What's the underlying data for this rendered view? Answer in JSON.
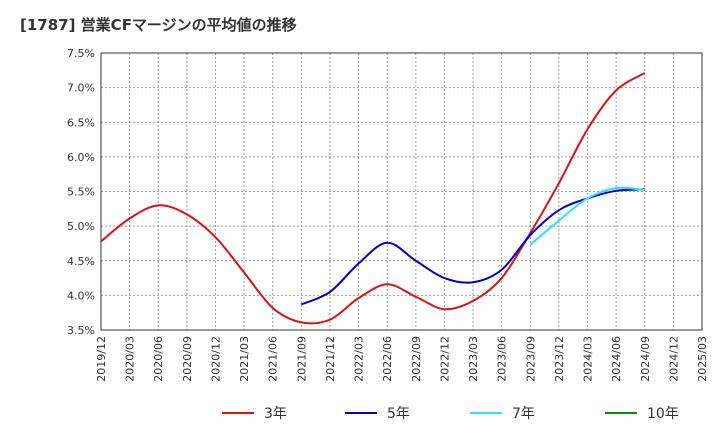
{
  "chart_data": {
    "type": "line",
    "title": "[1787]  営業CFマージンの平均値の推移",
    "xlabel": "",
    "ylabel": "",
    "categories": [
      "2019/12",
      "2020/03",
      "2020/06",
      "2020/09",
      "2020/12",
      "2021/03",
      "2021/06",
      "2021/09",
      "2021/12",
      "2022/03",
      "2022/06",
      "2022/09",
      "2022/12",
      "2023/03",
      "2023/06",
      "2023/09",
      "2023/12",
      "2024/03",
      "2024/06",
      "2024/09",
      "2024/12",
      "2025/03"
    ],
    "y_ticks": [
      "7.5%",
      "7.0%",
      "6.5%",
      "6.0%",
      "5.5%",
      "5.0%",
      "4.5%",
      "4.0%",
      "3.5%"
    ],
    "ylim": [
      3.5,
      7.5
    ],
    "grid": true,
    "legend_position": "bottom",
    "series": [
      {
        "name": "3年",
        "color": "#dd1111",
        "values": [
          4.78,
          5.11,
          5.3,
          5.17,
          4.84,
          4.33,
          3.82,
          3.61,
          3.65,
          3.96,
          4.16,
          3.98,
          3.8,
          3.92,
          4.25,
          4.9,
          5.62,
          6.4,
          6.96,
          7.21,
          null,
          null
        ]
      },
      {
        "name": "5年",
        "color": "#0000cc",
        "values": [
          null,
          null,
          null,
          null,
          null,
          null,
          null,
          3.87,
          4.05,
          4.46,
          4.76,
          4.5,
          4.25,
          4.19,
          4.37,
          4.87,
          5.23,
          5.4,
          5.51,
          5.53,
          null,
          null
        ]
      },
      {
        "name": "7年",
        "color": "#33ddff",
        "values": [
          null,
          null,
          null,
          null,
          null,
          null,
          null,
          null,
          null,
          null,
          null,
          null,
          null,
          null,
          null,
          4.73,
          5.08,
          5.4,
          5.55,
          5.52,
          null,
          null
        ]
      },
      {
        "name": "10年",
        "color": "#118811",
        "values": [
          null,
          null,
          null,
          null,
          null,
          null,
          null,
          null,
          null,
          null,
          null,
          null,
          null,
          null,
          null,
          null,
          null,
          null,
          null,
          null,
          null,
          null
        ]
      }
    ]
  }
}
